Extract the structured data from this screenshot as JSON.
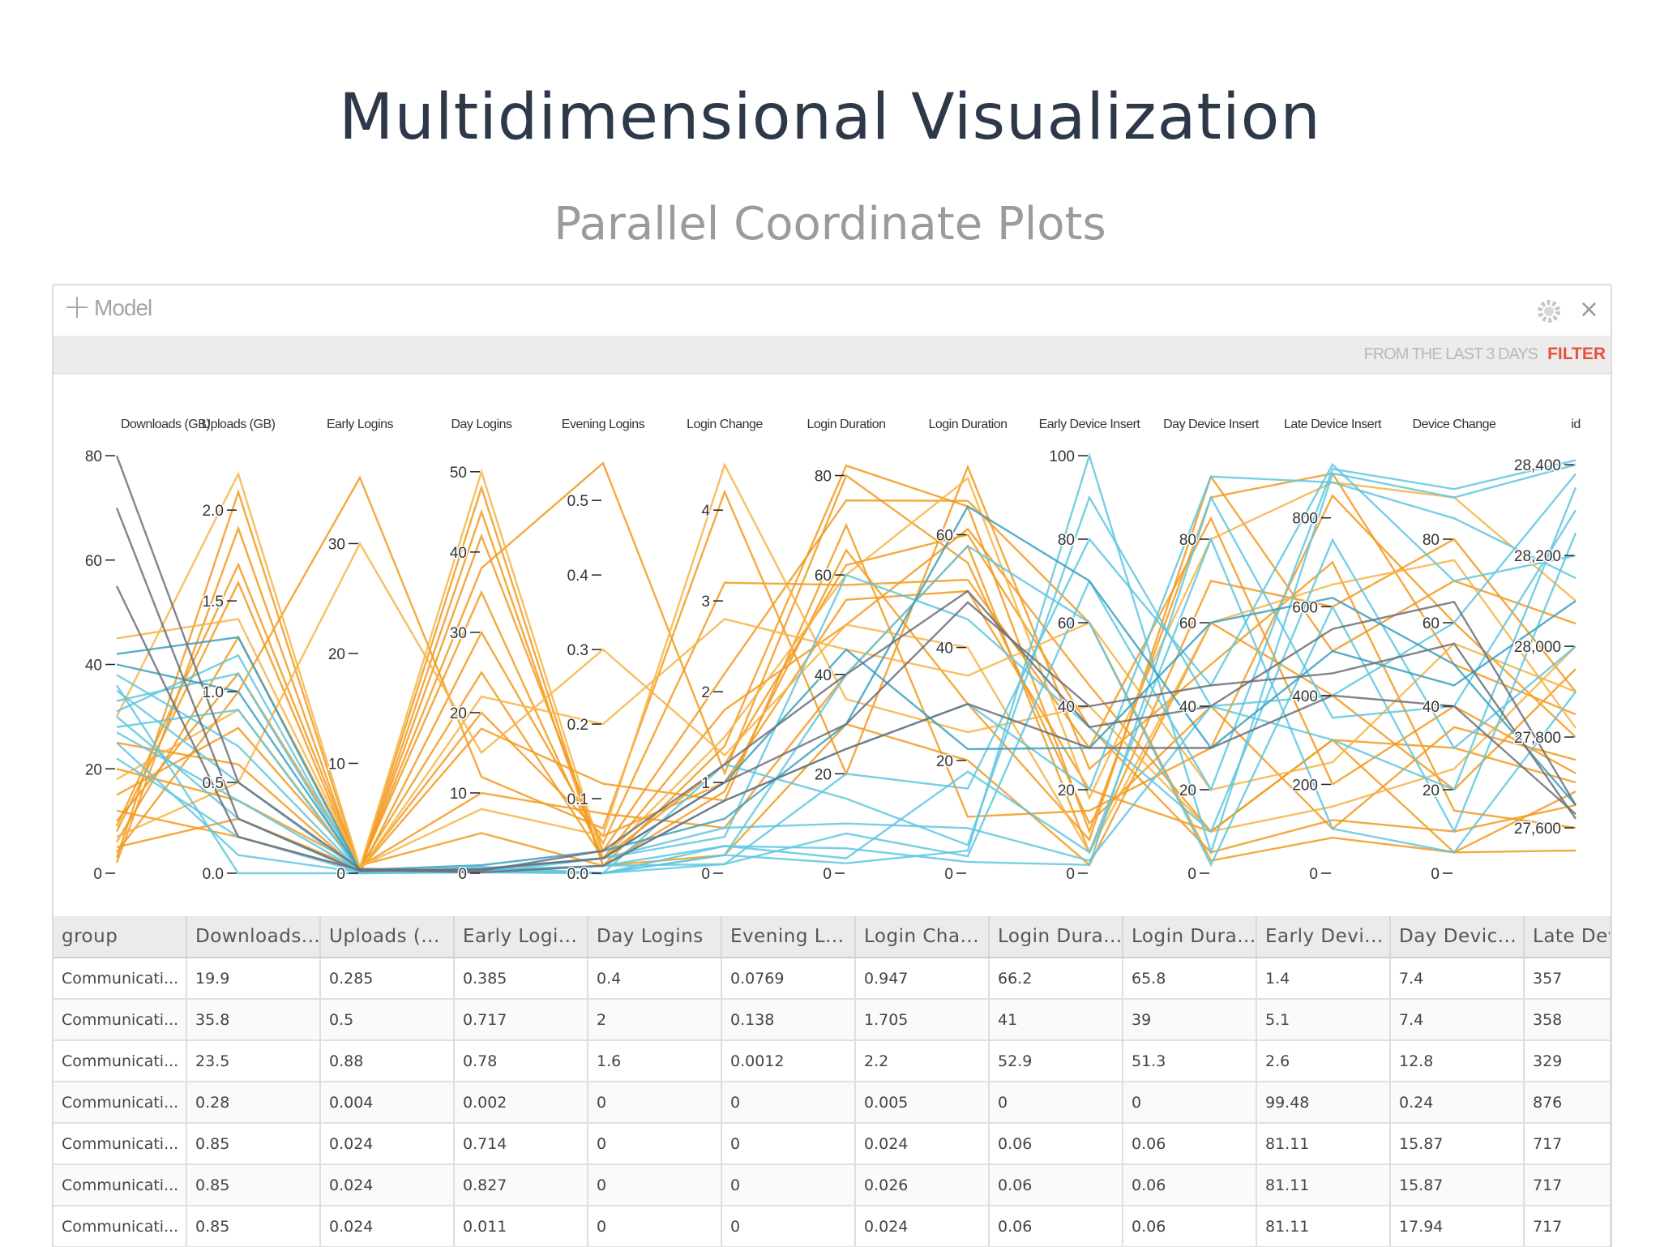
{
  "slide": {
    "title": "Multidimensional Visualization",
    "subtitle": "Parallel Coordinate Plots"
  },
  "panel": {
    "model_label": "Model",
    "filter_range": "FROM THE LAST 3 DAYS",
    "filter_label": "FILTER",
    "icons": {
      "add": "plus-icon",
      "settings": "gear-icon",
      "close": "close-icon"
    },
    "close_glyph": "×"
  },
  "colors": {
    "orange": "#f29a1e",
    "light_orange": "#f6b445",
    "blue": "#5fc7e1",
    "teal": "#3aa0c2",
    "gray": "#6d6f78"
  },
  "chart_data": {
    "type": "parallel_coordinates",
    "axes": [
      {
        "name": "Downloads (GB)",
        "min": 0,
        "max": 80,
        "ticks": [
          "0",
          "20",
          "40",
          "60",
          "80"
        ]
      },
      {
        "name": "Uploads (GB)",
        "min": 0,
        "max": 2.3,
        "ticks": [
          "0.0",
          "0.5",
          "1.0",
          "1.5",
          "2.0"
        ]
      },
      {
        "name": "Early Logins",
        "min": 0,
        "max": 38,
        "ticks": [
          "0",
          "10",
          "20",
          "30"
        ]
      },
      {
        "name": "Day Logins",
        "min": 0,
        "max": 52,
        "ticks": [
          "0",
          "10",
          "20",
          "30",
          "40",
          "50"
        ]
      },
      {
        "name": "Evening Logins",
        "min": 0,
        "max": 0.56,
        "ticks": [
          "0.0",
          "0.1",
          "0.2",
          "0.3",
          "0.4",
          "0.5"
        ]
      },
      {
        "name": "Login Change",
        "min": 0,
        "max": 4.6,
        "ticks": [
          "0",
          "1",
          "2",
          "3",
          "4"
        ]
      },
      {
        "name": "Login Duration",
        "min": 0,
        "max": 84,
        "ticks": [
          "0",
          "20",
          "40",
          "60",
          "80"
        ]
      },
      {
        "name": "Login Duration",
        "min": 0,
        "max": 74,
        "ticks": [
          "0",
          "20",
          "40",
          "60"
        ]
      },
      {
        "name": "Early Device Insert",
        "min": 0,
        "max": 100,
        "ticks": [
          "0",
          "20",
          "40",
          "60",
          "80",
          "100"
        ]
      },
      {
        "name": "Day Device Insert",
        "min": 0,
        "max": 100,
        "ticks": [
          "0",
          "20",
          "40",
          "60",
          "80"
        ]
      },
      {
        "name": "Late Device Insert",
        "min": 0,
        "max": 940,
        "ticks": [
          "0",
          "200",
          "400",
          "600",
          "800"
        ]
      },
      {
        "name": "Device Change",
        "min": 0,
        "max": 100,
        "ticks": [
          "0",
          "20",
          "40",
          "60",
          "80"
        ]
      },
      {
        "name": "id",
        "min": 27500,
        "max": 28420,
        "ticks": [
          "27,600",
          "27,800",
          "28,000",
          "28,200",
          "28,400"
        ]
      }
    ],
    "series": [
      {
        "color": "#f29a1e",
        "lines": [
          [
            5,
            0.3,
            0.4,
            20,
            0.05,
            1,
            55,
            50,
            20,
            10,
            300,
            30,
            27700
          ],
          [
            10,
            1.1,
            0.5,
            35,
            0.02,
            1.2,
            62,
            60,
            35,
            5,
            120,
            10,
            27650
          ],
          [
            3,
            2.1,
            0.3,
            48,
            0.01,
            1.4,
            82,
            65,
            10,
            90,
            900,
            50,
            27850
          ],
          [
            15,
            0.8,
            0.6,
            10,
            0.08,
            0.5,
            40,
            58,
            5,
            70,
            600,
            80,
            27900
          ],
          [
            8,
            1.6,
            0.2,
            42,
            0.03,
            2.2,
            75,
            66,
            60,
            3,
            80,
            5,
            27550
          ],
          [
            20,
            0.4,
            0.7,
            5,
            0.01,
            0.2,
            30,
            20,
            2,
            60,
            400,
            20,
            27950
          ],
          [
            2,
            1.9,
            0.1,
            30,
            0.04,
            3.2,
            58,
            52,
            30,
            85,
            200,
            40,
            27720
          ],
          [
            12,
            0.2,
            0.3,
            18,
            0.12,
            0.8,
            70,
            10,
            15,
            30,
            850,
            60,
            27800
          ],
          [
            6,
            1.3,
            0.5,
            25,
            0.02,
            1.8,
            50,
            61,
            45,
            10,
            300,
            5,
            27680
          ],
          [
            25,
            0.6,
            0.2,
            45,
            0.01,
            0.9,
            65,
            30,
            8,
            95,
            500,
            70,
            28050
          ],
          [
            4,
            1.0,
            36,
            12,
            0.06,
            4.2,
            20,
            72,
            25,
            50,
            700,
            15,
            27600
          ],
          [
            9,
            1.7,
            0.4,
            38,
            0.55,
            1.1,
            80,
            55,
            12,
            40,
            100,
            35,
            27750
          ]
        ]
      },
      {
        "color": "#f6b445",
        "lines": [
          [
            30,
            2.2,
            0.5,
            50,
            0.02,
            1.5,
            60,
            70,
            18,
            80,
            880,
            90,
            28100
          ],
          [
            18,
            0.9,
            0.3,
            22,
            0.2,
            2.8,
            45,
            35,
            60,
            20,
            250,
            55,
            27900
          ],
          [
            45,
            1.4,
            0.6,
            8,
            0.05,
            4.5,
            35,
            25,
            40,
            10,
            150,
            25,
            28000
          ],
          [
            7,
            0.5,
            30,
            15,
            0.3,
            1.3,
            50,
            40,
            5,
            60,
            650,
            75,
            27820
          ]
        ]
      },
      {
        "color": "#5fc7e1",
        "lines": [
          [
            30,
            0.3,
            0.1,
            0.5,
            0.0,
            0.2,
            2,
            4,
            100,
            5,
            900,
            90,
            28400
          ],
          [
            35,
            0.5,
            0.2,
            0.2,
            0.01,
            0.3,
            5,
            2,
            2,
            90,
            350,
            40,
            28300
          ],
          [
            28,
            0.9,
            0.1,
            0.8,
            0.0,
            0.1,
            20,
            15,
            80,
            45,
            920,
            70,
            28200
          ],
          [
            33,
            1.1,
            0.0,
            0.1,
            0.02,
            0.5,
            10,
            8,
            3,
            40,
            300,
            20,
            28350
          ],
          [
            25,
            0.1,
            0.1,
            0.3,
            0.0,
            0.2,
            40,
            58,
            60,
            2,
            600,
            10,
            28250
          ],
          [
            38,
            0.7,
            0.2,
            0.4,
            0.01,
            0.8,
            25,
            30,
            20,
            95,
            880,
            85,
            28150
          ],
          [
            22,
            0.2,
            0.1,
            0.2,
            0.0,
            1.2,
            15,
            5,
            90,
            40,
            400,
            60,
            28380
          ],
          [
            31,
            1.2,
            0.1,
            0.6,
            0.02,
            0.4,
            60,
            45,
            35,
            10,
            750,
            30,
            28000
          ],
          [
            27,
            0.4,
            0.2,
            0.1,
            0.0,
            0.3,
            3,
            18,
            5,
            80,
            100,
            5,
            27900
          ],
          [
            36,
            0.0,
            0.0,
            0.2,
            0.01,
            0.1,
            8,
            3,
            70,
            20,
            910,
            92,
            28410
          ]
        ]
      },
      {
        "color": "#3aa0c2",
        "lines": [
          [
            40,
            1.0,
            0.3,
            1.0,
            0.03,
            0.6,
            30,
            65,
            70,
            30,
            500,
            45,
            28100
          ],
          [
            42,
            1.3,
            0.2,
            0.5,
            0.02,
            1.0,
            45,
            22,
            30,
            60,
            620,
            50,
            27650
          ]
        ]
      },
      {
        "color": "#6d6f78",
        "lines": [
          [
            80,
            0.5,
            0.4,
            0.3,
            0.03,
            1.2,
            40,
            50,
            35,
            40,
            550,
            65,
            27650
          ],
          [
            70,
            0.3,
            0.2,
            0.5,
            0.02,
            1.0,
            30,
            48,
            40,
            45,
            450,
            55,
            27620
          ],
          [
            55,
            0.2,
            0.3,
            0.1,
            0.01,
            0.8,
            25,
            30,
            30,
            30,
            400,
            40,
            27630
          ]
        ]
      }
    ]
  },
  "table": {
    "columns": [
      "group",
      "Downloads...",
      "Uploads (...",
      "Early Logi...",
      "Day Logins",
      "Evening L...",
      "Login Cha...",
      "Login Dura...",
      "Login Dura...",
      "Early Devi...",
      "Day Devic...",
      "Late Devic"
    ],
    "rows": [
      [
        "Communicati...",
        "19.9",
        "0.285",
        "0.385",
        "0.4",
        "0.0769",
        "0.947",
        "66.2",
        "65.8",
        "1.4",
        "7.4",
        "357"
      ],
      [
        "Communicati...",
        "35.8",
        "0.5",
        "0.717",
        "2",
        "0.138",
        "1.705",
        "41",
        "39",
        "5.1",
        "7.4",
        "358"
      ],
      [
        "Communicati...",
        "23.5",
        "0.88",
        "0.78",
        "1.6",
        "0.0012",
        "2.2",
        "52.9",
        "51.3",
        "2.6",
        "12.8",
        "329"
      ],
      [
        "Communicati...",
        "0.28",
        "0.004",
        "0.002",
        "0",
        "0",
        "0.005",
        "0",
        "0",
        "99.48",
        "0.24",
        "876"
      ],
      [
        "Communicati...",
        "0.85",
        "0.024",
        "0.714",
        "0",
        "0",
        "0.024",
        "0.06",
        "0.06",
        "81.11",
        "15.87",
        "717"
      ],
      [
        "Communicati...",
        "0.85",
        "0.024",
        "0.827",
        "0",
        "0",
        "0.026",
        "0.06",
        "0.06",
        "81.11",
        "15.87",
        "717"
      ],
      [
        "Communicati...",
        "0.85",
        "0.024",
        "0.011",
        "0",
        "0",
        "0.024",
        "0.06",
        "0.06",
        "81.11",
        "17.94",
        "717"
      ]
    ]
  }
}
